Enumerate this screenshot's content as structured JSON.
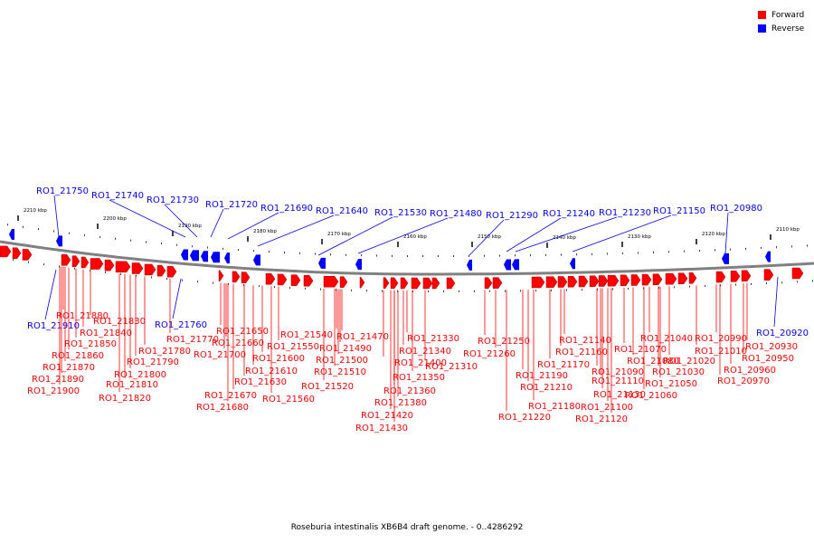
{
  "legend": [
    {
      "label": "Forward",
      "color": "#ff0000"
    },
    {
      "label": "Reverse",
      "color": "#0000ff"
    }
  ],
  "caption": "Roseburia intestinalis XB6B4 draft genome. - 0..4286292",
  "colors": {
    "forward": "#ff0000",
    "reverse": "#0000ff",
    "backbone": "#808080"
  },
  "ticks": [
    "2210 kbp",
    "2200 kbp",
    "2190 kbp",
    "2180 kbp",
    "2170 kbp",
    "2160 kbp",
    "2150 kbp",
    "2140 kbp",
    "2130 kbp",
    "2120 kbp",
    "2110 kbp"
  ],
  "reverse_labels": [
    "RO1_21750",
    "RO1_21740",
    "RO1_21730",
    "RO1_21720",
    "RO1_21690",
    "RO1_21640",
    "RO1_21530",
    "RO1_21480",
    "RO1_21290",
    "RO1_21240",
    "RO1_21230",
    "RO1_21150",
    "RO1_20980",
    "RO1_21910",
    "RO1_21760",
    "RO1_20920"
  ],
  "forward_labels": [
    "RO1_21880",
    "RO1_21830",
    "RO1_21840",
    "RO1_21850",
    "RO1_21860",
    "RO1_21870",
    "RO1_21890",
    "RO1_21900",
    "RO1_21770",
    "RO1_21780",
    "RO1_21790",
    "RO1_21800",
    "RO1_21810",
    "RO1_21820",
    "RO1_21650",
    "RO1_21660",
    "RO1_21700",
    "RO1_21600",
    "RO1_21610",
    "RO1_21630",
    "RO1_21670",
    "RO1_21680",
    "RO1_21540",
    "RO1_21550",
    "RO1_21560",
    "RO1_21470",
    "RO1_21490",
    "RO1_21500",
    "RO1_21510",
    "RO1_21520",
    "RO1_21400",
    "RO1_21360",
    "RO1_21380",
    "RO1_21420",
    "RO1_21430",
    "RO1_21330",
    "RO1_21340",
    "RO1_21350",
    "RO1_21310",
    "RO1_21250",
    "RO1_21260",
    "RO1_21190",
    "RO1_21210",
    "RO1_21220",
    "RO1_21180",
    "RO1_21140",
    "RO1_21160",
    "RO1_21170",
    "RO1_21110",
    "RO1_21130",
    "RO1_21100",
    "RO1_21120",
    "RO1_21070",
    "RO1_21080",
    "RO1_21090",
    "RO1_21040",
    "RO1_21050",
    "RO1_21060",
    "RO1_21010",
    "RO1_21020",
    "RO1_21030",
    "RO1_20990",
    "RO1_20930",
    "RO1_20950",
    "RO1_20960",
    "RO1_20970"
  ]
}
